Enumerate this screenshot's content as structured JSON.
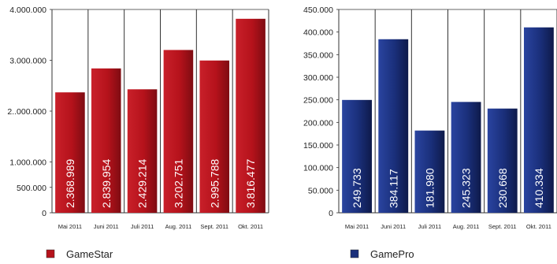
{
  "chart_data": [
    {
      "type": "bar",
      "categories": [
        "Mai 2011",
        "Juni 2011",
        "Juli 2011",
        "Aug. 2011",
        "Sept. 2011",
        "Okt. 2011"
      ],
      "series": [
        {
          "name": "GameStar",
          "values": [
            2368989,
            2839954,
            2429214,
            3202751,
            2995788,
            3816477
          ]
        }
      ],
      "data_labels": [
        "2.368.989",
        "2.839.954",
        "2.429.214",
        "3.202.751",
        "2.995.788",
        "3.816.477"
      ],
      "y_ticks": [
        0,
        500000,
        1000000,
        2000000,
        3000000,
        4000000
      ],
      "y_tick_labels": [
        "0",
        "500.000",
        "1.000.000",
        "2..000.000",
        "3.000.000",
        "4.000.000"
      ],
      "ylim": [
        0,
        4000000
      ],
      "color": "#b5121b",
      "legend": "bottom-left",
      "grid": false
    },
    {
      "type": "bar",
      "categories": [
        "Mai 2011",
        "Juni 2011",
        "Juli 2011",
        "Aug. 2011",
        "Sept. 2011",
        "Okt. 2011"
      ],
      "series": [
        {
          "name": "GamePro",
          "values": [
            249733,
            384117,
            181980,
            245323,
            230668,
            410334
          ]
        }
      ],
      "data_labels": [
        "249.733",
        "384.117",
        "181.980",
        "245.323",
        "230.668",
        "410.334"
      ],
      "y_ticks": [
        0,
        50000,
        100000,
        150000,
        200000,
        250000,
        300000,
        350000,
        400000,
        450000
      ],
      "y_tick_labels": [
        "0",
        "50.000",
        "100.000",
        "150.000",
        "200.000",
        "250.000",
        "300.000",
        "350.000",
        "400.000",
        "450.000"
      ],
      "ylim": [
        0,
        450000
      ],
      "color": "#1a2f7a",
      "legend": "bottom-left",
      "grid": false
    }
  ]
}
